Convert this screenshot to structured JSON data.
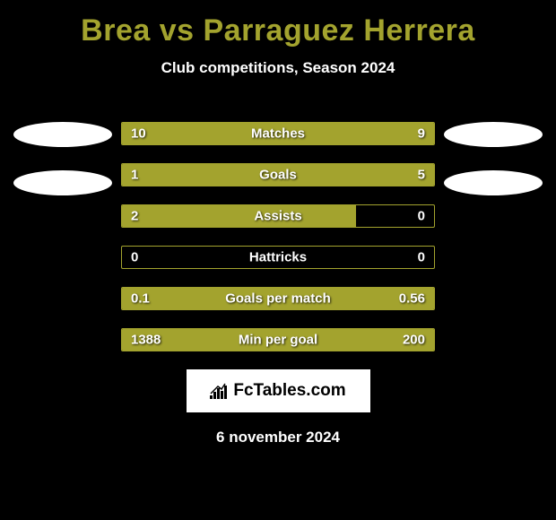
{
  "title": "Brea vs Parraguez Herrera",
  "subtitle": "Club competitions, Season 2024",
  "date": "6 november 2024",
  "logo_text": "FcTables.com",
  "colors": {
    "background": "#000000",
    "accent": "#a3a32e",
    "text": "#ffffff",
    "logo_bg": "#ffffff",
    "logo_text": "#000000"
  },
  "bars": [
    {
      "label": "Matches",
      "left_value": "10",
      "right_value": "9",
      "left_pct": 100,
      "right_pct": 0
    },
    {
      "label": "Goals",
      "left_value": "1",
      "right_value": "5",
      "left_pct": 17,
      "right_pct": 83
    },
    {
      "label": "Assists",
      "left_value": "2",
      "right_value": "0",
      "left_pct": 75,
      "right_pct": 0
    },
    {
      "label": "Hattricks",
      "left_value": "0",
      "right_value": "0",
      "left_pct": 0,
      "right_pct": 0
    },
    {
      "label": "Goals per match",
      "left_value": "0.1",
      "right_value": "0.56",
      "left_pct": 0,
      "right_pct": 100
    },
    {
      "label": "Min per goal",
      "left_value": "1388",
      "right_value": "200",
      "left_pct": 0,
      "right_pct": 100
    }
  ]
}
